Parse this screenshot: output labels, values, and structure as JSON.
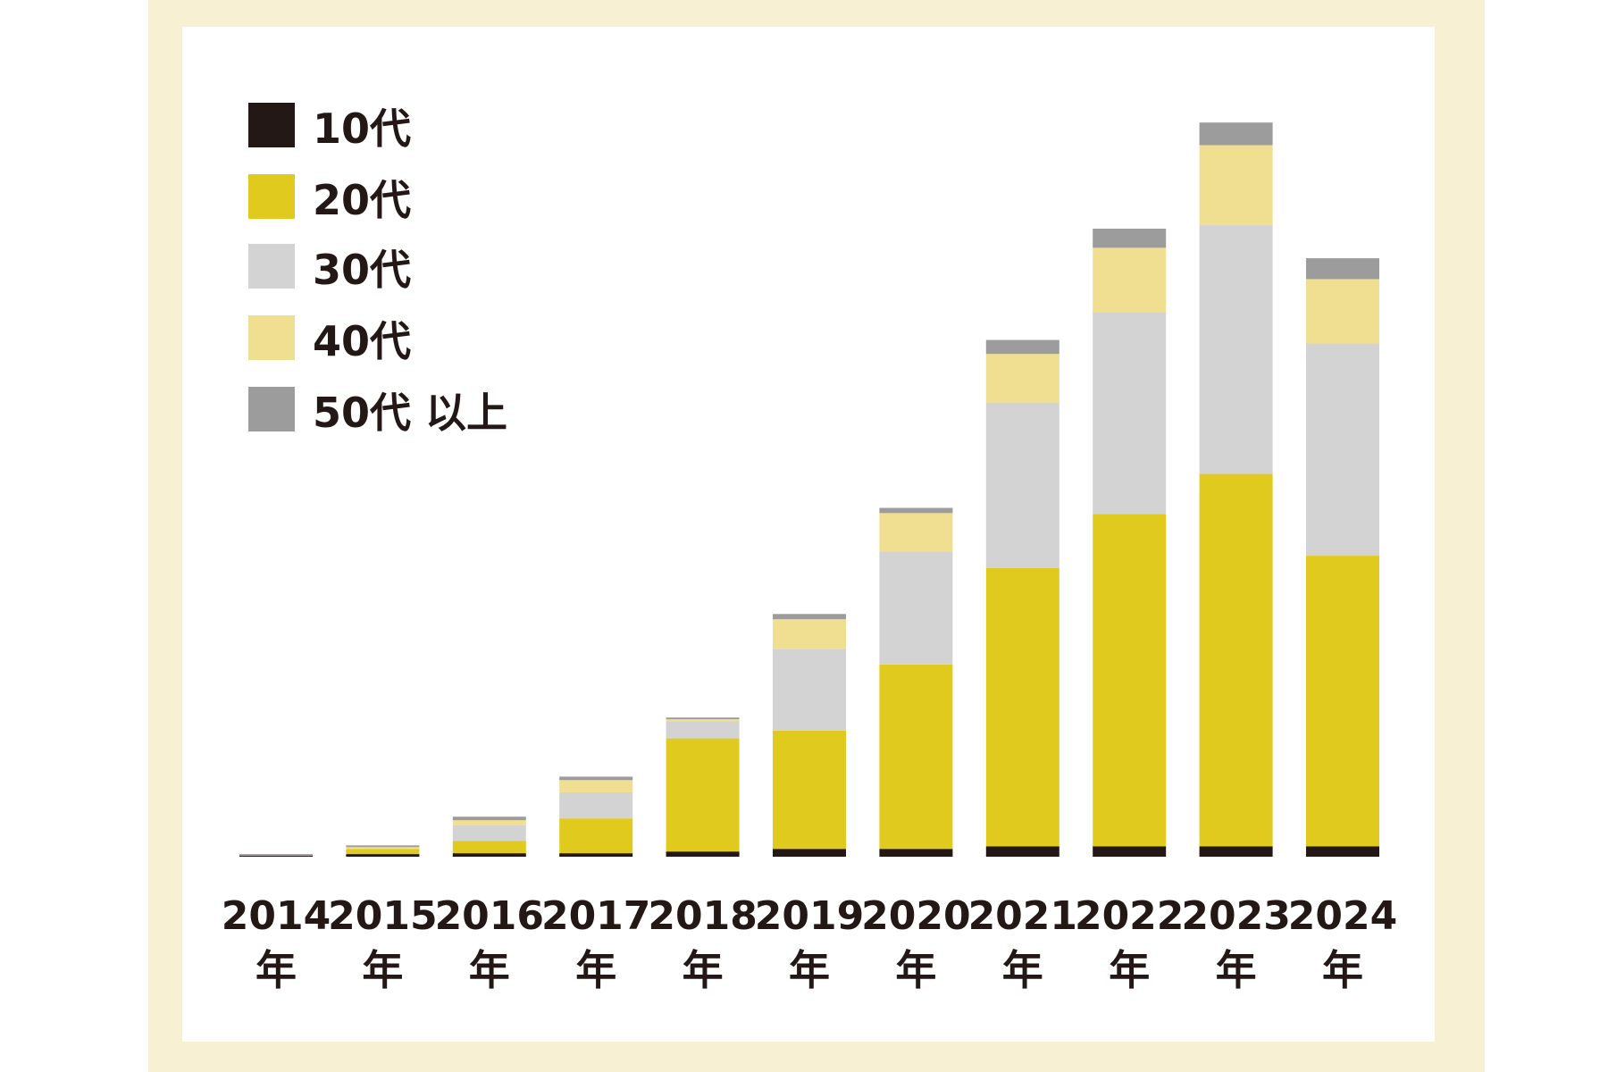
{
  "chart_data": {
    "type": "bar",
    "stacked": true,
    "categories": [
      {
        "year": "2014",
        "unit": "年"
      },
      {
        "year": "2015",
        "unit": "年"
      },
      {
        "year": "2016",
        "unit": "年"
      },
      {
        "year": "2017",
        "unit": "年"
      },
      {
        "year": "2018",
        "unit": "年"
      },
      {
        "year": "2019",
        "unit": "年"
      },
      {
        "year": "2020",
        "unit": "年"
      },
      {
        "year": "2021",
        "unit": "年"
      },
      {
        "year": "2022",
        "unit": "年"
      },
      {
        "year": "2023",
        "unit": "年"
      },
      {
        "year": "2024",
        "unit": "年"
      }
    ],
    "series": [
      {
        "name": "10代",
        "color": "#231815",
        "values": [
          0.5,
          1.5,
          2,
          2,
          3,
          4.5,
          4.5,
          6,
          6,
          6,
          6
        ]
      },
      {
        "name": "20代",
        "color": "#e0ca1d",
        "values": [
          0,
          3,
          7,
          20,
          65,
          68,
          106,
          160,
          191,
          214,
          167
        ]
      },
      {
        "name": "30代",
        "color": "#d3d3d3",
        "values": [
          0,
          0,
          9,
          15,
          10,
          47,
          65,
          95,
          116,
          143,
          122
        ]
      },
      {
        "name": "40代",
        "color": "#f0df90",
        "values": [
          0,
          1,
          3,
          7,
          1,
          17,
          22,
          28,
          37,
          46,
          37
        ]
      },
      {
        "name": "50代以上",
        "color": "#9c9c9c",
        "values": [
          1,
          1,
          2,
          2,
          1,
          3,
          3,
          8,
          11,
          13,
          12
        ]
      }
    ],
    "legend_labels": {
      "s0": "10代",
      "s1": "20代",
      "s2": "30代",
      "s3": "40代",
      "s4": "50代 以上"
    },
    "ylim": [
      0,
      430
    ],
    "grid": false,
    "legend_position": "top-left",
    "title": "",
    "xlabel": "",
    "ylabel": ""
  }
}
